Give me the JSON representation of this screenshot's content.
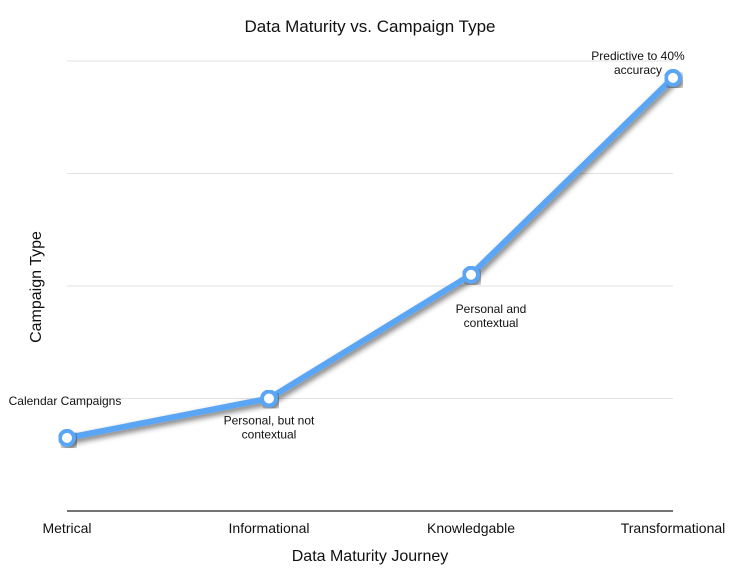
{
  "chart_data": {
    "type": "line",
    "title": "Data Maturity vs. Campaign Type",
    "xlabel": "Data Maturity Journey",
    "ylabel": "Campaign Type",
    "categories": [
      "Metrical",
      "Informational",
      "Knowledgable",
      "Transformational"
    ],
    "series": [
      {
        "values": [
          0.65,
          1.0,
          2.1,
          3.85
        ]
      }
    ],
    "ylim": [
      0,
      4
    ],
    "grid": true,
    "legend": "none",
    "line_color": "#5aa6f5",
    "annotations": [
      {
        "index": 0,
        "lines": [
          "Calendar Campaigns"
        ]
      },
      {
        "index": 1,
        "lines": [
          "Personal, but not",
          "contextual"
        ]
      },
      {
        "index": 2,
        "lines": [
          "Personal and",
          "contextual"
        ]
      },
      {
        "index": 3,
        "lines": [
          "Predictive to 40%",
          "accuracy"
        ]
      }
    ]
  }
}
